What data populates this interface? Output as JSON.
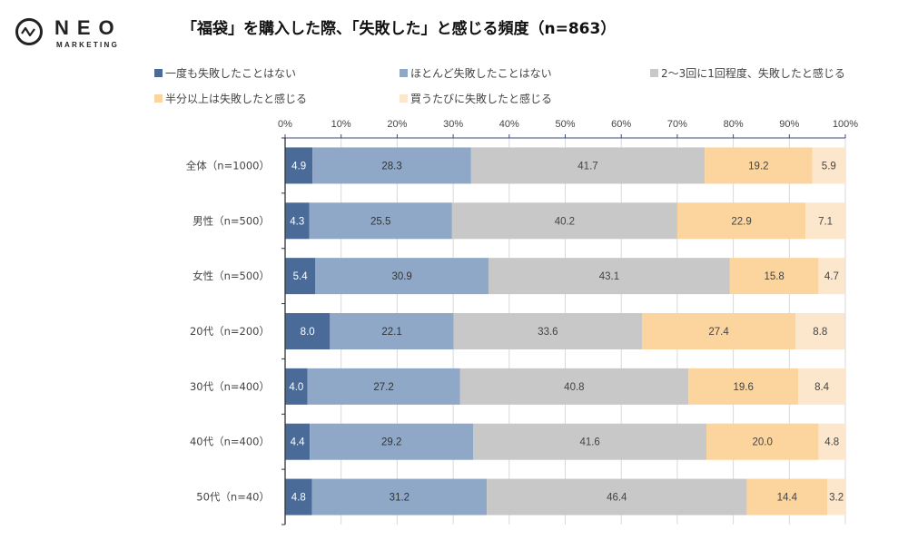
{
  "logo": {
    "name": "NEO",
    "subtitle": "MARKETING"
  },
  "chart_data": {
    "type": "bar",
    "orientation": "horizontal",
    "stacked": true,
    "percent_stacked": true,
    "title": "「福袋」を購入した際、「失敗した」と感じる頻度（n=863）",
    "xlabel": "",
    "ylabel": "",
    "xlim": [
      0,
      100
    ],
    "x_ticks": [
      "0%",
      "10%",
      "20%",
      "30%",
      "40%",
      "50%",
      "60%",
      "70%",
      "80%",
      "90%",
      "100%"
    ],
    "grid": true,
    "legend_position": "top",
    "categories": [
      "全体（n=1000）",
      "男性（n=500）",
      "女性（n=500）",
      "20代（n=200）",
      "30代（n=400）",
      "40代（n=400）",
      "50代（n=40）"
    ],
    "series": [
      {
        "name": "一度も失敗したことはない",
        "color": "#4a6a98",
        "label_color": "#ffffff",
        "values": [
          4.9,
          4.3,
          5.4,
          8.0,
          4.0,
          4.4,
          4.8
        ]
      },
      {
        "name": "ほとんど失敗したことはない",
        "color": "#8fa8c8",
        "label_color": "#333333",
        "values": [
          28.3,
          25.5,
          30.9,
          22.1,
          27.2,
          29.2,
          31.2
        ]
      },
      {
        "name": "2～3回に1回程度、失敗したと感じる",
        "color": "#c8c8c8",
        "label_color": "#444444",
        "values": [
          41.7,
          40.2,
          43.1,
          33.6,
          40.8,
          41.6,
          46.4
        ]
      },
      {
        "name": "半分以上は失敗したと感じる",
        "color": "#fbd49e",
        "label_color": "#444444",
        "values": [
          19.2,
          22.9,
          15.8,
          27.4,
          19.6,
          20.0,
          14.4
        ]
      },
      {
        "name": "買うたびに失敗したと感じる",
        "color": "#fde7cc",
        "label_color": "#444444",
        "values": [
          5.9,
          7.1,
          4.7,
          8.8,
          8.4,
          4.8,
          3.2
        ]
      }
    ]
  }
}
